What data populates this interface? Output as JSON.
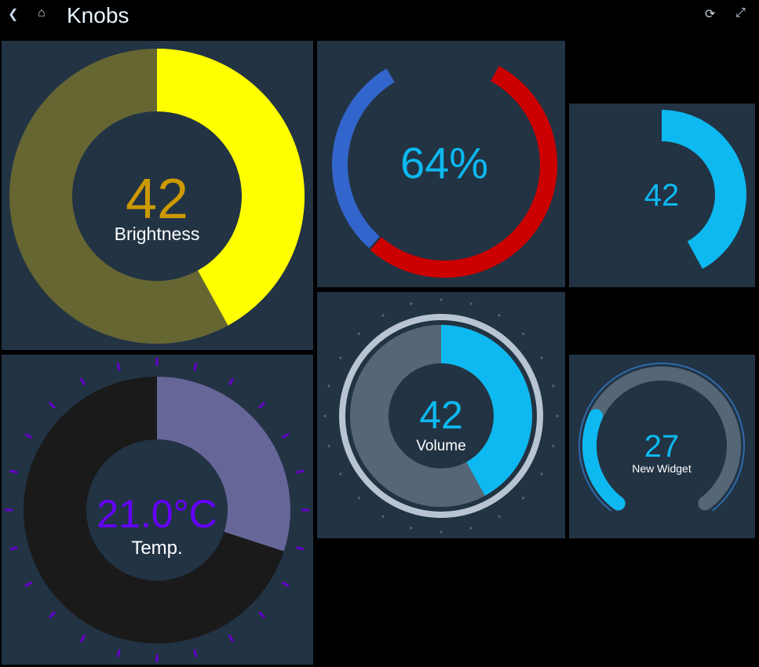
{
  "header": {
    "title": "Knobs",
    "icons": [
      "back-icon",
      "home-icon",
      "refresh-icon",
      "fullscreen-icon"
    ]
  },
  "widgets": {
    "brightness": {
      "value": "42",
      "label": "Brightness",
      "percent": 42,
      "colors": {
        "fill": "#ffff00",
        "track": "#666633",
        "value": "#cc9900"
      }
    },
    "percent": {
      "value": "64%",
      "percent": 64,
      "colors": {
        "fill": "#cc0000",
        "track": "#3366cc",
        "value": "#0db9f0"
      }
    },
    "small": {
      "value": "42",
      "percent": 42,
      "colors": {
        "fill": "#0db9f0",
        "value": "#0db9f0"
      }
    },
    "temp": {
      "value": "21.0°C",
      "label": "Temp.",
      "percent": 30,
      "colors": {
        "fill": "#666699",
        "track": "#1a1a1a",
        "value": "#6600ff",
        "ticks": "#6600cc"
      }
    },
    "volume": {
      "value": "42",
      "label": "Volume",
      "percent": 42,
      "colors": {
        "fill": "#0db9f0",
        "track": "#556677",
        "ring": "#b8c4d2"
      }
    },
    "new_widget": {
      "value": "27",
      "label": "New Widget",
      "percent": 27,
      "colors": {
        "fill": "#0db9f0",
        "track": "#556677",
        "ring": "#2f6aa8"
      }
    }
  }
}
